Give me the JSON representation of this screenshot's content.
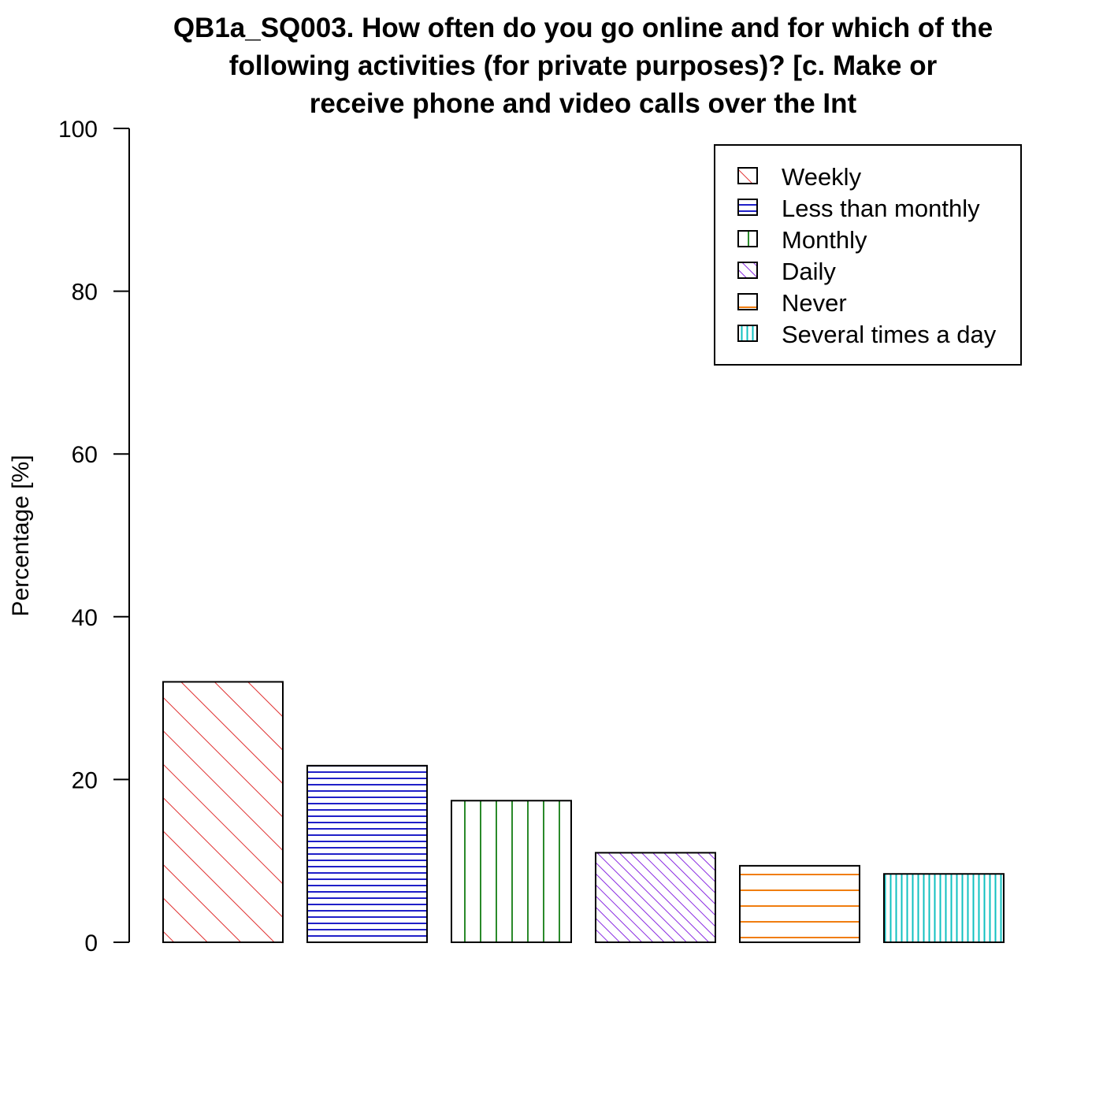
{
  "chart_data": {
    "type": "bar",
    "title_lines": [
      "QB1a_SQ003. How often do you go online and for which of the",
      "following activities (for private purposes)? [c.  Make or",
      "receive phone and video calls over the Int"
    ],
    "xlabel": "",
    "ylabel": "Percentage [%]",
    "ylim": [
      0,
      100
    ],
    "yticks": [
      0,
      20,
      40,
      60,
      80,
      100
    ],
    "grid": false,
    "legend_position": "top-right",
    "categories": [
      "Weekly",
      "Less than monthly",
      "Monthly",
      "Daily",
      "Never",
      "Several times a day"
    ],
    "values": [
      32.0,
      21.7,
      17.4,
      11.0,
      9.4,
      8.4
    ],
    "colors": [
      "#e03030",
      "#2020c8",
      "#2a8a2a",
      "#8a2be2",
      "#f07d10",
      "#10c0c0"
    ],
    "patterns": [
      "diagonal-wide",
      "horizontal-dense",
      "vertical-wide",
      "diagonal-dense",
      "horizontal-wide",
      "vertical-dense"
    ]
  }
}
